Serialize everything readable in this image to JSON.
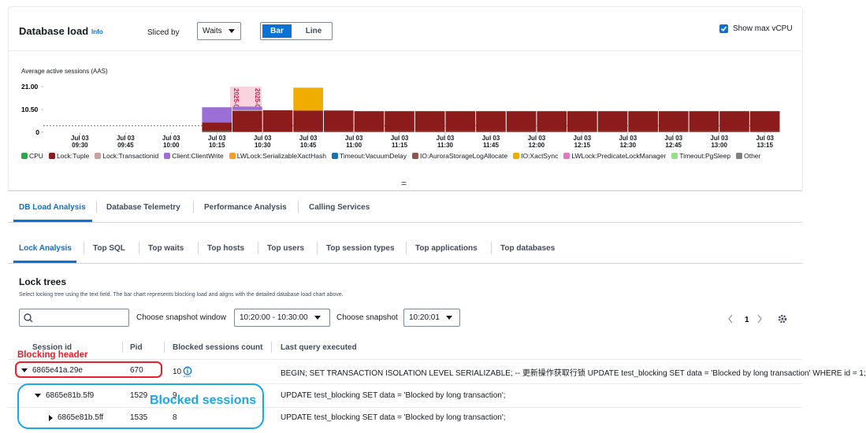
{
  "header": {
    "title": "Database load",
    "info": "Info",
    "sliced_by": "Sliced by",
    "slice_select": "Waits",
    "view_toggle": [
      "Bar",
      "Line"
    ],
    "show_max_vcpu": "Show max vCPU"
  },
  "chart_data": {
    "type": "bar",
    "stacked": true,
    "y_label": "Average active sessions (AAS)",
    "annotations": [
      "2025-07-0...",
      "2025-07-0..."
    ],
    "max_vcpu": 3,
    "show_max_vcpu": true,
    "grid": false,
    "ylim": [
      0,
      22
    ],
    "yticks": [
      0,
      {
        "value": 10.5,
        "label": "10.50"
      },
      {
        "value": 21,
        "label": "21.00"
      }
    ],
    "xlim": [
      "Jul 03 09:18",
      "Jul 03 13:20"
    ],
    "xticks": [
      "Jul 03 09:30",
      "Jul 03 09:45",
      "Jul 03 10:00",
      "Jul 03 10:15",
      "Jul 03 10:30",
      "Jul 03 10:45",
      "Jul 03 11:00",
      "Jul 03 11:15",
      "Jul 03 11:30",
      "Jul 03 11:45",
      "Jul 03 12:00",
      "Jul 03 12:15",
      "Jul 03 12:30",
      "Jul 03 12:45",
      "Jul 03 13:00",
      "Jul 03 13:15"
    ],
    "x": [
      "Jul 03 10:15",
      "Jul 03 10:25",
      "Jul 03 10:35",
      "Jul 03 10:45",
      "Jul 03 10:55",
      "Jul 03 11:05",
      "Jul 03 11:15",
      "Jul 03 11:25",
      "Jul 03 11:35",
      "Jul 03 11:45",
      "Jul 03 11:55",
      "Jul 03 12:05",
      "Jul 03 12:15",
      "Jul 03 12:25",
      "Jul 03 12:35",
      "Jul 03 12:45",
      "Jul 03 12:55",
      "Jul 03 13:05",
      "Jul 03 13:15"
    ],
    "series": [
      {
        "name": "CPU",
        "color": "#2ea44f",
        "values": [
          0.5,
          0.3,
          0.3,
          0.4,
          0.4,
          0.4,
          0.4,
          0.4,
          0.4,
          0.4,
          0.4,
          0.4,
          0.4,
          0.4,
          0.4,
          0.4,
          0.4,
          0.4,
          0.4
        ]
      },
      {
        "name": "Lock:Tuple",
        "color": "#8c1b1b",
        "values": [
          4,
          9.5,
          9.8,
          9.6,
          9.6,
          9.3,
          9.3,
          9.3,
          9.3,
          9.3,
          9.3,
          9.3,
          9.3,
          9.3,
          9.3,
          9.3,
          9.3,
          9.3,
          9.3
        ]
      },
      {
        "name": "Lock:Transactionid",
        "color": "#c9a0a0",
        "values": [
          0,
          0.5,
          0,
          0,
          0,
          0,
          0,
          0,
          0,
          0,
          0,
          0,
          0,
          0,
          0,
          0,
          0,
          0,
          0
        ]
      },
      {
        "name": "Client:ClientWrite",
        "color": "#9b6fd6",
        "values": [
          7,
          1.5,
          0,
          0,
          0,
          0,
          0,
          0,
          0,
          0,
          0,
          0,
          0,
          0,
          0,
          0,
          0,
          0,
          0
        ]
      },
      {
        "name": "LWLock:SerializableXactHash",
        "color": "#f89c24",
        "values": [
          0,
          0,
          0,
          0,
          0,
          0,
          0,
          0,
          0,
          0,
          0,
          0,
          0,
          0,
          0,
          0,
          0,
          0,
          0
        ]
      },
      {
        "name": "Timeout:VacuumDelay",
        "color": "#1f6fb5",
        "values": [
          0,
          0,
          0,
          0,
          0,
          0,
          0,
          0,
          0,
          0,
          0,
          0,
          0,
          0,
          0,
          0,
          0,
          0,
          0
        ]
      },
      {
        "name": "IO:AuroraStorageLogAllocate",
        "color": "#8c564b",
        "values": [
          0,
          0,
          0,
          0,
          0,
          0,
          0,
          0,
          0,
          0,
          0,
          0,
          0,
          0,
          0,
          0,
          0,
          0,
          0
        ]
      },
      {
        "name": "IO:XactSync",
        "color": "#f0ad00",
        "values": [
          0,
          0,
          0,
          10.5,
          0,
          0,
          0,
          0,
          0,
          0,
          0,
          0,
          0,
          0,
          0,
          0,
          0,
          0,
          0
        ]
      },
      {
        "name": "LWLock:PredicateLockManager",
        "color": "#e377c2",
        "values": [
          0,
          0,
          0,
          0,
          0,
          0,
          0,
          0,
          0,
          0,
          0,
          0,
          0,
          0,
          0,
          0,
          0,
          0,
          0
        ]
      },
      {
        "name": "Timeout:PgSleep",
        "color": "#98df8a",
        "values": [
          0,
          0,
          0,
          0,
          0,
          0,
          0,
          0,
          0,
          0,
          0,
          0,
          0,
          0,
          0,
          0,
          0,
          0,
          0
        ]
      },
      {
        "name": "Other",
        "color": "#7f7f7f",
        "values": [
          0,
          0,
          0,
          0,
          0,
          0,
          0,
          0,
          0,
          0,
          0,
          0,
          0,
          0,
          0,
          0,
          0,
          0,
          0
        ]
      }
    ]
  },
  "drag_handle": "=",
  "analysis_tabs": [
    "DB Load Analysis",
    "Database Telemetry",
    "Performance Analysis",
    "Calling Services"
  ],
  "lock_tabs": [
    "Lock Analysis",
    "Top SQL",
    "Top waits",
    "Top hosts",
    "Top users",
    "Top session types",
    "Top applications",
    "Top databases"
  ],
  "lock_trees": {
    "title": "Lock trees",
    "description": "Select locking tree using the text field. The bar chart represents blocking load and aligns with the detailed database load chart above.",
    "snapshot_window_label": "Choose snapshot window",
    "snapshot_window": "10:20:00 - 10:30:00",
    "snapshot_label": "Choose snapshot",
    "snapshot": "10:20:01",
    "page": 1,
    "table": {
      "columns": [
        "Session id",
        "Pid",
        "Blocked sessions count",
        "Last query executed"
      ],
      "rows": [
        [
          "6865e41a.29e",
          670,
          10,
          "BEGIN; SET TRANSACTION ISOLATION LEVEL SERIALIZABLE; -- 更新操作获取行锁 UPDATE test_blocking SET data = 'Blocked by long transaction' WHERE id = 1;"
        ],
        [
          "6865e81b.5f9",
          1529,
          9,
          "UPDATE test_blocking SET data = 'Blocked by long transaction';"
        ],
        [
          "6865e81b.5ff",
          1535,
          8,
          "UPDATE test_blocking SET data = 'Blocked by long transaction';"
        ]
      ]
    }
  },
  "callouts": {
    "blocking_header": "Blocking header",
    "blocked_sessions": "Blocked sessions"
  }
}
